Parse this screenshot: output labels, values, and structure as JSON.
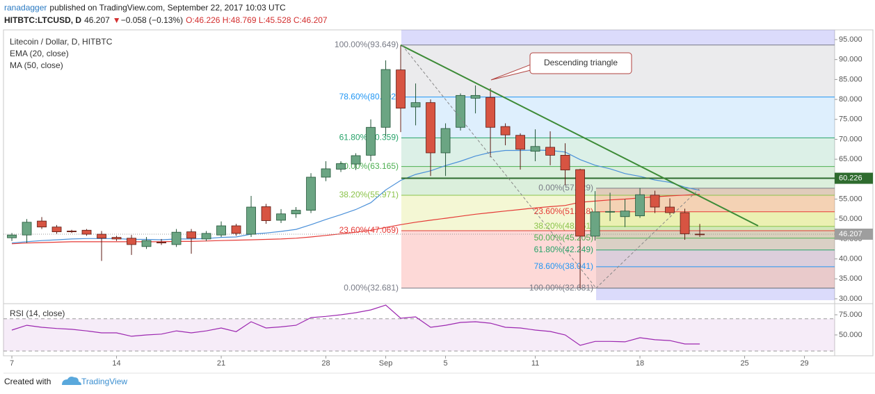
{
  "header": {
    "author": "ranadagger",
    "published": "published on TradingView.com, September 22, 2017 10:03 UTC",
    "symbol": "HITBTC:LTCUSD, D",
    "price": "46.207",
    "arrow": "▼",
    "change": "−0.058 (−0.13%)",
    "ohlc": "O:46.226 H:48.769 L:45.528 C:46.207"
  },
  "chart_data": [
    {
      "type": "candlestick",
      "title": "Litecoin / Dollar, D, HITBTC",
      "xlim": [
        -0.56,
        55.02
      ],
      "xticks": [
        {
          "value": 0,
          "label": "7"
        },
        {
          "value": 7,
          "label": "14"
        },
        {
          "value": 14,
          "label": "21"
        },
        {
          "value": 21,
          "label": "28"
        },
        {
          "value": 25,
          "label": "Sep"
        },
        {
          "value": 29,
          "label": "5"
        },
        {
          "value": 35,
          "label": "11"
        },
        {
          "value": 42,
          "label": "18"
        },
        {
          "value": 49,
          "label": "25"
        },
        {
          "value": 53,
          "label": "29"
        }
      ],
      "ylim": [
        29.65,
        97.44
      ],
      "yticks": [
        {
          "value": 30,
          "label": "30.000"
        },
        {
          "value": 35,
          "label": "35.000"
        },
        {
          "value": 40,
          "label": "40.000"
        },
        {
          "value": 45,
          "label": "45.000"
        },
        {
          "value": 50,
          "label": "50.000"
        },
        {
          "value": 55,
          "label": "55.000"
        },
        {
          "value": 60,
          "label": "60.000"
        },
        {
          "value": 65,
          "label": "65.000"
        },
        {
          "value": 70,
          "label": "70.000"
        },
        {
          "value": 75,
          "label": "75.000"
        },
        {
          "value": 80,
          "label": "80.000"
        },
        {
          "value": 85,
          "label": "85.000"
        },
        {
          "value": 90,
          "label": "90.000"
        },
        {
          "value": 95,
          "label": "95.000"
        }
      ],
      "open": [
        45.3,
        46.0,
        49.5,
        48.0,
        47.0,
        47.2,
        46.2,
        45.4,
        45.2,
        43.1,
        44.2,
        43.6,
        46.8,
        45.0,
        46.0,
        48.3,
        46.2,
        53.1,
        49.7,
        51.3,
        52.2,
        60.5,
        62.5,
        63.8,
        66.0,
        73.0,
        87.4,
        78.1,
        79.2,
        66.6,
        73.0,
        80.3,
        80.5,
        73.2,
        71.0,
        67.0,
        68.0,
        66.0,
        62.4,
        45.7,
        51.8,
        50.6,
        50.8,
        56.0,
        53.0,
        51.6,
        46.226
      ],
      "high": [
        46.5,
        50.0,
        50.5,
        48.5,
        47.3,
        47.5,
        47.0,
        45.8,
        46.0,
        45.5,
        45.0,
        47.5,
        47.5,
        47.0,
        49.4,
        48.8,
        55.8,
        53.8,
        52.5,
        53.0,
        61.5,
        64.5,
        64.5,
        66.5,
        75.0,
        89.8,
        93.649,
        84.0,
        80.0,
        74.0,
        81.5,
        83.5,
        82.8,
        74.0,
        71.5,
        72.5,
        72.0,
        69.0,
        62.6,
        57.0,
        56.6,
        55.0,
        57.8,
        57.1,
        55.2,
        52.6,
        48.769
      ],
      "low": [
        44.5,
        44.0,
        47.5,
        46.3,
        46.5,
        45.8,
        39.5,
        44.5,
        41.0,
        42.5,
        43.5,
        43.0,
        41.3,
        44.5,
        45.5,
        45.8,
        45.5,
        48.8,
        49.0,
        50.3,
        51.5,
        59.5,
        61.8,
        62.3,
        64.5,
        70.8,
        71.8,
        73.5,
        60.8,
        60.8,
        72.2,
        76.5,
        65.5,
        68.5,
        62.4,
        64.5,
        63.5,
        58.5,
        32.681,
        44.6,
        49.5,
        48.0,
        50.3,
        51.5,
        51.0,
        44.8,
        45.528
      ],
      "close": [
        46.0,
        49.2,
        48.0,
        46.8,
        46.8,
        46.2,
        45.2,
        45.0,
        43.6,
        44.6,
        44.0,
        46.7,
        45.2,
        46.4,
        48.3,
        46.4,
        53.0,
        49.6,
        51.3,
        52.2,
        60.5,
        62.6,
        63.9,
        65.9,
        73.0,
        87.5,
        77.8,
        79.2,
        66.6,
        72.7,
        81.0,
        81.0,
        73.0,
        71.1,
        67.5,
        68.2,
        66.0,
        62.3,
        45.7,
        51.8,
        51.9,
        52.0,
        56.1,
        53.0,
        51.6,
        46.3,
        46.207
      ],
      "up_color": "#6ba583",
      "down_color": "#d75442",
      "series": [
        {
          "name": "EMA (20, close)",
          "color": "#4a90d9",
          "values": [
            44.0,
            44.3,
            44.6,
            44.8,
            45.0,
            45.1,
            45.1,
            45.1,
            44.9,
            44.9,
            44.8,
            45.0,
            45.0,
            45.1,
            45.4,
            45.5,
            46.2,
            46.5,
            46.9,
            47.4,
            48.6,
            49.9,
            51.1,
            52.4,
            54.1,
            57.3,
            59.7,
            61.2,
            62.1,
            63.4,
            64.5,
            65.8,
            66.7,
            67.2,
            67.2,
            67.3,
            67.2,
            66.8,
            64.9,
            63.5,
            62.6,
            61.4,
            60.7,
            59.8,
            59.2,
            58.0,
            57.2
          ]
        },
        {
          "name": "MA (50, close)",
          "color": "#e53935",
          "values": [
            43.8,
            44.0,
            44.1,
            44.2,
            44.3,
            44.3,
            44.3,
            44.3,
            44.3,
            44.3,
            44.3,
            44.4,
            44.4,
            44.5,
            44.6,
            44.7,
            44.8,
            44.9,
            45.0,
            45.2,
            45.5,
            45.9,
            46.3,
            46.7,
            47.2,
            47.9,
            48.6,
            49.2,
            49.7,
            50.2,
            50.7,
            51.2,
            51.6,
            52.0,
            52.4,
            52.8,
            53.1,
            53.4,
            54.2,
            54.5,
            54.8,
            55.0,
            55.3,
            55.6,
            55.8,
            56.0,
            56.2
          ]
        }
      ],
      "fibs": [
        {
          "levels": [
            {
              "value": 32.681,
              "label": "0.00%(32.681)"
            },
            {
              "value": 47.069,
              "label": "23.60%(47.069)"
            },
            {
              "value": 55.971,
              "label": "38.20%(55.971)"
            },
            {
              "value": 63.165,
              "label": "50.00%(63.165)"
            },
            {
              "value": 70.359,
              "label": "61.80%(70.359)"
            },
            {
              "value": 80.602,
              "label": "78.60%(80.602)"
            },
            {
              "value": 93.649,
              "label": "100.00%(93.649)"
            }
          ]
        },
        {
          "levels": [
            {
              "value": 57.729,
              "label": "0.00%(57.729)"
            },
            {
              "value": 51.818,
              "label": "23.60%(51.818)"
            },
            {
              "value": 48.161,
              "label": "38.20%(48.161)"
            },
            {
              "value": 45.205,
              "label": "50.00%(45.205)"
            },
            {
              "value": 42.249,
              "label": "61.80%(42.249)"
            },
            {
              "value": 38.041,
              "label": "78.60%(38.041)"
            },
            {
              "value": 32.681,
              "label": "100.00%(32.681)"
            }
          ]
        }
      ],
      "fib_line_colors": [
        "#787b86",
        "#e53935",
        "#8bc34a",
        "#4caf50",
        "#26a269",
        "#2196f3",
        "#787b86"
      ],
      "fib_fill_colors": [
        "rgba(244,67,54,0.2)",
        "rgba(205,220,57,0.22)",
        "rgba(76,175,80,0.2)",
        "rgba(38,162,105,0.16)",
        "rgba(33,150,243,0.15)",
        "rgba(120,123,134,0.15)"
      ],
      "hline": {
        "value": 60.226,
        "label": "60.226",
        "color": "#2e6b2e"
      },
      "last_price": {
        "value": 46.207,
        "label": "46.207",
        "color": "#9e9e9e"
      },
      "annotation": "Descending triangle"
    },
    {
      "type": "line",
      "title": "RSI (14, close)",
      "color": "#9c27b0",
      "ylim": [
        24.1,
        88.8
      ],
      "yticks": [
        {
          "value": 75,
          "label": "75.000"
        },
        {
          "value": 50,
          "label": "50.000"
        }
      ],
      "band": [
        30,
        70
      ],
      "values": [
        56,
        62,
        59.5,
        58,
        57,
        55,
        52.6,
        52.6,
        48.3,
        50,
        51,
        55,
        52.6,
        55,
        58.6,
        54,
        66.4,
        58.6,
        60,
        62,
        71.5,
        73,
        75,
        77.6,
        81,
        87,
        70.7,
        72.4,
        59.5,
        62,
        65.5,
        66.4,
        64.6,
        59.5,
        58.6,
        56,
        54.3,
        50,
        37,
        42,
        42,
        41.4,
        46.5,
        44,
        43,
        38.8,
        38.8
      ]
    }
  ],
  "footer": {
    "created": "Created with",
    "brand": "TradingView"
  }
}
